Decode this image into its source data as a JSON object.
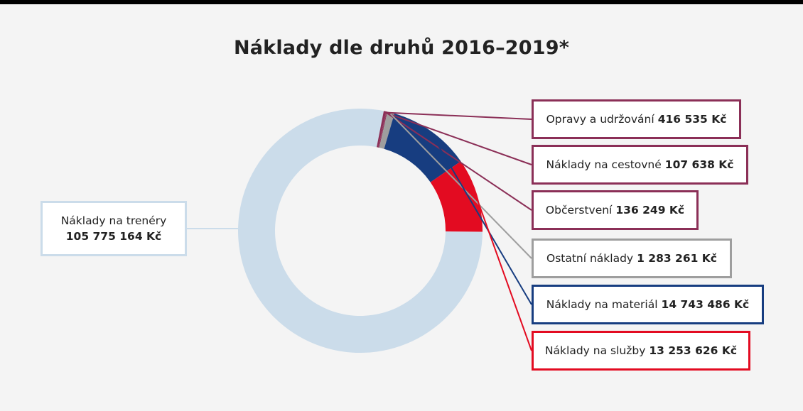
{
  "chart_data": {
    "type": "pie",
    "title": "Náklady dle druhů 2016–2019*",
    "donut": true,
    "series": [
      {
        "name": "Náklady na trenéry",
        "value_label": "105 775 164 Kč",
        "value": 105775164,
        "color": "#cbdcea"
      },
      {
        "name": "Opravy a udržování",
        "value_label": "416 535 Kč",
        "value": 416535,
        "color": "#8b2f57"
      },
      {
        "name": "Náklady na cestovné",
        "value_label": "107 638 Kč",
        "value": 107638,
        "color": "#8b2f57"
      },
      {
        "name": "Občerstvení",
        "value_label": "136 249 Kč",
        "value": 136249,
        "color": "#8b2f57"
      },
      {
        "name": "Ostatní náklady",
        "value_label": "1 283 261 Kč",
        "value": 1283261,
        "color": "#9e9e9e"
      },
      {
        "name": "Náklady na materiál",
        "value_label": "14 743 486 Kč",
        "value": 14743486,
        "color": "#173d80"
      },
      {
        "name": "Náklady na služby",
        "value_label": "13 253 626 Kč",
        "value": 13253626,
        "color": "#e30b21"
      }
    ]
  }
}
